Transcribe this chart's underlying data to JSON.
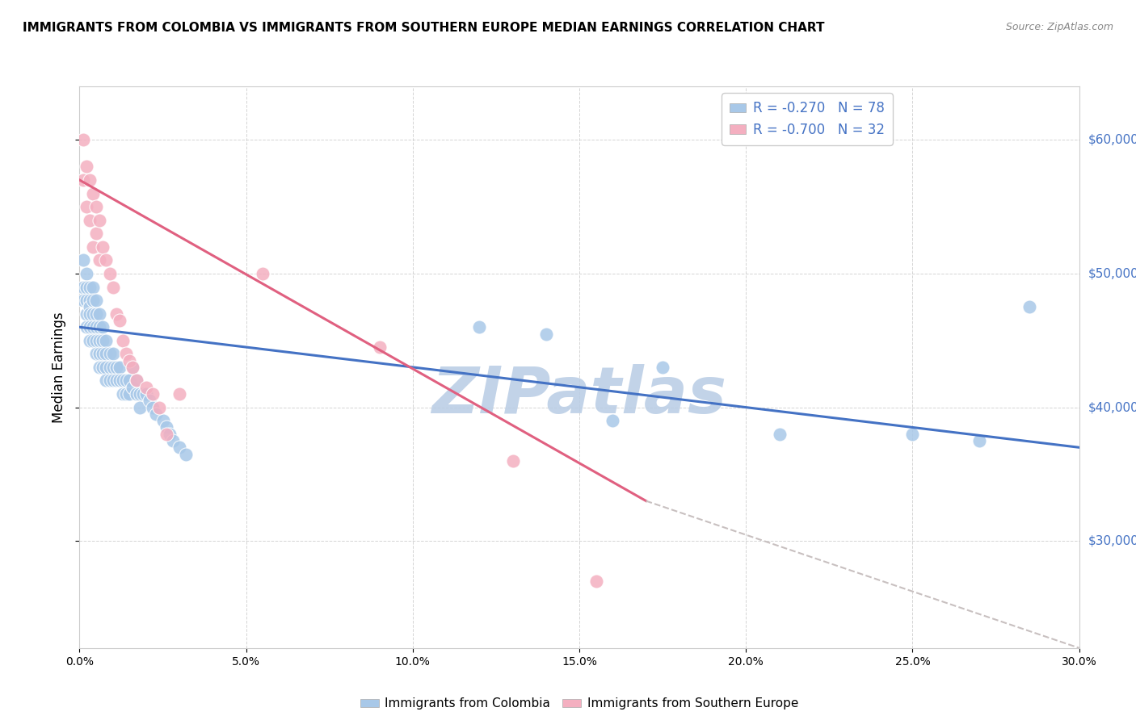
{
  "title": "IMMIGRANTS FROM COLOMBIA VS IMMIGRANTS FROM SOUTHERN EUROPE MEDIAN EARNINGS CORRELATION CHART",
  "source": "Source: ZipAtlas.com",
  "ylabel": "Median Earnings",
  "right_ytick_values": [
    30000,
    40000,
    50000,
    60000
  ],
  "xlim": [
    0.0,
    0.3
  ],
  "ylim": [
    22000,
    64000
  ],
  "colombia_R": -0.27,
  "colombia_N": 78,
  "southern_europe_R": -0.7,
  "southern_europe_N": 32,
  "colombia_color": "#a8c8e8",
  "southern_europe_color": "#f4afc0",
  "colombia_line_color": "#4472c4",
  "southern_europe_line_color": "#e06080",
  "dashed_line_color": "#c8c0c0",
  "watermark_color": "#b8cce4",
  "colombia_points_x": [
    0.001,
    0.001,
    0.001,
    0.002,
    0.002,
    0.002,
    0.002,
    0.002,
    0.003,
    0.003,
    0.003,
    0.003,
    0.003,
    0.003,
    0.004,
    0.004,
    0.004,
    0.004,
    0.004,
    0.005,
    0.005,
    0.005,
    0.005,
    0.005,
    0.006,
    0.006,
    0.006,
    0.006,
    0.006,
    0.007,
    0.007,
    0.007,
    0.007,
    0.008,
    0.008,
    0.008,
    0.008,
    0.009,
    0.009,
    0.009,
    0.01,
    0.01,
    0.01,
    0.011,
    0.011,
    0.012,
    0.012,
    0.013,
    0.013,
    0.014,
    0.014,
    0.015,
    0.015,
    0.016,
    0.016,
    0.017,
    0.017,
    0.018,
    0.018,
    0.019,
    0.02,
    0.021,
    0.022,
    0.023,
    0.025,
    0.026,
    0.027,
    0.028,
    0.03,
    0.032,
    0.12,
    0.14,
    0.16,
    0.175,
    0.21,
    0.25,
    0.27,
    0.285
  ],
  "colombia_points_y": [
    51000,
    49000,
    48000,
    50000,
    49000,
    48000,
    47000,
    46000,
    49000,
    48000,
    47500,
    47000,
    46000,
    45000,
    49000,
    48000,
    47000,
    46000,
    45000,
    48000,
    47000,
    46000,
    45000,
    44000,
    47000,
    46000,
    45000,
    44000,
    43000,
    46000,
    45000,
    44000,
    43000,
    45000,
    44000,
    43000,
    42000,
    44000,
    43000,
    42000,
    44000,
    43000,
    42000,
    43000,
    42000,
    43000,
    42000,
    42000,
    41000,
    42000,
    41000,
    42000,
    41000,
    43000,
    41500,
    42000,
    41000,
    41000,
    40000,
    41000,
    41000,
    40500,
    40000,
    39500,
    39000,
    38500,
    38000,
    37500,
    37000,
    36500,
    46000,
    45500,
    39000,
    43000,
    38000,
    38000,
    37500,
    47500
  ],
  "southern_europe_points_x": [
    0.001,
    0.001,
    0.002,
    0.002,
    0.003,
    0.003,
    0.004,
    0.004,
    0.005,
    0.005,
    0.006,
    0.006,
    0.007,
    0.008,
    0.009,
    0.01,
    0.011,
    0.012,
    0.013,
    0.014,
    0.015,
    0.016,
    0.017,
    0.02,
    0.022,
    0.024,
    0.026,
    0.03,
    0.055,
    0.09,
    0.13,
    0.155
  ],
  "southern_europe_points_y": [
    60000,
    57000,
    58000,
    55000,
    57000,
    54000,
    56000,
    52000,
    55000,
    53000,
    54000,
    51000,
    52000,
    51000,
    50000,
    49000,
    47000,
    46500,
    45000,
    44000,
    43500,
    43000,
    42000,
    41500,
    41000,
    40000,
    38000,
    41000,
    50000,
    44500,
    36000,
    27000
  ],
  "colombia_line_x": [
    0.0,
    0.3
  ],
  "colombia_line_y": [
    46000,
    37000
  ],
  "southern_europe_line_x": [
    0.0,
    0.17
  ],
  "southern_europe_line_y": [
    57000,
    33000
  ],
  "dashed_line_x": [
    0.17,
    0.3
  ],
  "dashed_line_y": [
    33000,
    22000
  ]
}
